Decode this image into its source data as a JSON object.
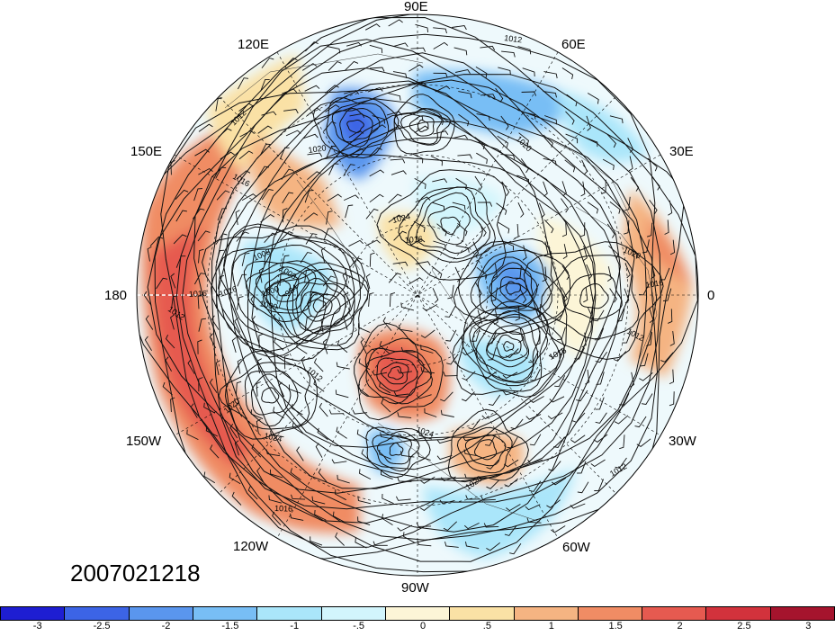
{
  "timestamp": "2007021218",
  "longitude_labels": {
    "e90": "90E",
    "e60": "60E",
    "e30": "30E",
    "zero": "0",
    "w30": "30W",
    "w60": "60W",
    "w90": "90W",
    "w120": "120W",
    "w150": "150W",
    "dl180": "180",
    "e150": "150E",
    "e120": "120E"
  },
  "isobar_labels": [
    "1012",
    "1020",
    "1016",
    "1008",
    "1000",
    "984",
    "1016",
    "1012",
    "1016",
    "1024",
    "1020",
    "1016",
    "1012",
    "1024",
    "1020",
    "1012",
    "1012",
    "1020",
    "1016",
    "1012",
    "1016",
    "1024",
    "1020",
    "1016",
    "1008",
    "1000"
  ],
  "colorbar": {
    "colors": [
      "#1e1ed2",
      "#3c64e6",
      "#5a96ee",
      "#78bef5",
      "#aae6fa",
      "#d2f5fc",
      "#fcf5d7",
      "#fae1a5",
      "#f5b482",
      "#f08c64",
      "#e65a50",
      "#d2323c",
      "#a5142d"
    ],
    "ticks": [
      "-3",
      "-2.5",
      "-2",
      "-1.5",
      "-1",
      "-.5",
      "0",
      ".5",
      "1",
      "1.5",
      "2",
      "2.5",
      "3"
    ]
  }
}
